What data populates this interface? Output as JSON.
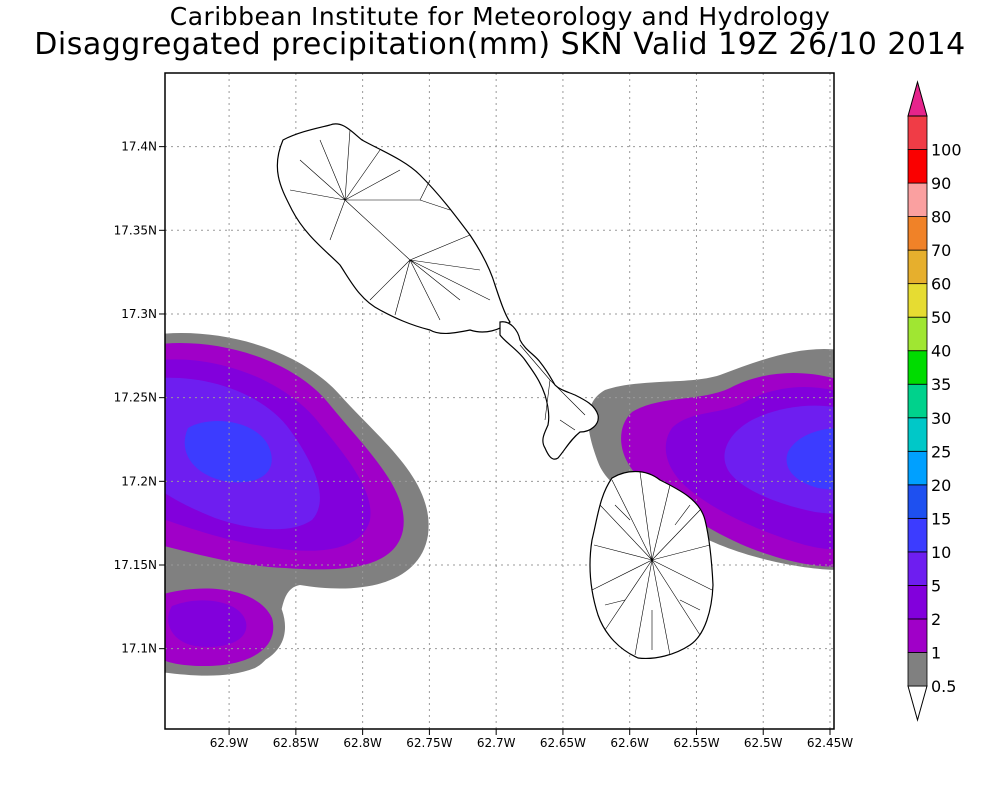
{
  "header": {
    "title": "Caribbean Institute for Meteorology and Hydrology",
    "subtitle": "Disaggregated precipitation(mm) SKN Valid 19Z 26/10 2014"
  },
  "map": {
    "lon_range": [
      -62.948,
      -62.447
    ],
    "lat_range": [
      17.052,
      17.444
    ],
    "grid": true,
    "x_ticks": [
      {
        "value": -62.9,
        "label": "62.9W"
      },
      {
        "value": -62.85,
        "label": "62.85W"
      },
      {
        "value": -62.8,
        "label": "62.8W"
      },
      {
        "value": -62.75,
        "label": "62.75W"
      },
      {
        "value": -62.7,
        "label": "62.7W"
      },
      {
        "value": -62.65,
        "label": "62.65W"
      },
      {
        "value": -62.6,
        "label": "62.6W"
      },
      {
        "value": -62.55,
        "label": "62.55W"
      },
      {
        "value": -62.5,
        "label": "62.5W"
      },
      {
        "value": -62.45,
        "label": "62.45W"
      }
    ],
    "y_ticks": [
      {
        "value": 17.1,
        "label": "17.1N"
      },
      {
        "value": 17.15,
        "label": "17.15N"
      },
      {
        "value": 17.2,
        "label": "17.2N"
      },
      {
        "value": 17.25,
        "label": "17.25N"
      },
      {
        "value": 17.3,
        "label": "17.3N"
      },
      {
        "value": 17.35,
        "label": "17.35N"
      },
      {
        "value": 17.4,
        "label": "17.4N"
      }
    ],
    "islands": [
      "St. Kitts",
      "Nevis"
    ]
  },
  "colorbar": {
    "placement": "right",
    "bands": [
      {
        "color": "#808080"
      },
      {
        "color": "#a000c8"
      },
      {
        "color": "#8200dc"
      },
      {
        "color": "#6e1ef0"
      },
      {
        "color": "#3c3cff"
      },
      {
        "color": "#1e50f0"
      },
      {
        "color": "#00a0ff"
      },
      {
        "color": "#00c8c8"
      },
      {
        "color": "#00d28c"
      },
      {
        "color": "#00dc00"
      },
      {
        "color": "#a0e632"
      },
      {
        "color": "#e6dc32"
      },
      {
        "color": "#e6af2d"
      },
      {
        "color": "#f08228"
      },
      {
        "color": "#faa0a0"
      },
      {
        "color": "#fa0000"
      },
      {
        "color": "#f03c46"
      }
    ],
    "top_color": "#e6248c",
    "labels": [
      "0.5",
      "1",
      "2",
      "5",
      "10",
      "15",
      "20",
      "25",
      "30",
      "35",
      "40",
      "50",
      "60",
      "70",
      "80",
      "90",
      "100"
    ]
  }
}
